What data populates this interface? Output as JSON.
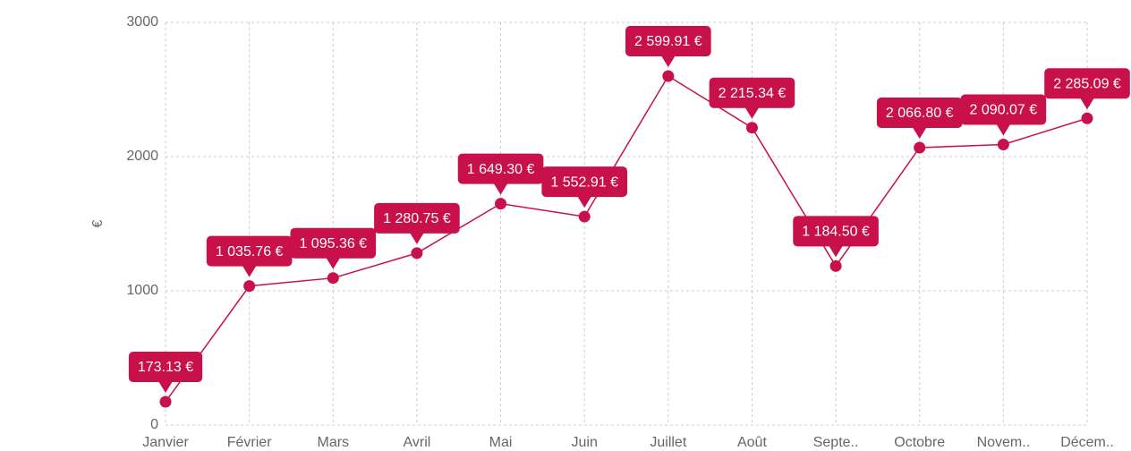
{
  "chart_data": {
    "type": "line",
    "y_label": "€",
    "categories": [
      "Janvier",
      "Février",
      "Mars",
      "Avril",
      "Mai",
      "Juin",
      "Juillet",
      "Août",
      "Septe..",
      "Octobre",
      "Novem..",
      "Décem.."
    ],
    "series": [
      {
        "name": "Total",
        "color": "#c8104a",
        "values": [
          173.13,
          1035.76,
          1095.36,
          1280.75,
          1649.3,
          1552.91,
          2599.91,
          2215.34,
          1184.5,
          2066.8,
          2090.07,
          2285.09
        ],
        "value_labels": [
          "173.13 €",
          "1 035.76 €",
          "1 095.36 €",
          "1 280.75 €",
          "1 649.30 €",
          "1 552.91 €",
          "2 599.91 €",
          "2 215.34 €",
          "1 184.50 €",
          "2 066.80 €",
          "2 090.07 €",
          "2 285.09 €"
        ]
      }
    ],
    "ylim": [
      0,
      3000
    ],
    "yticks": [
      0,
      1000,
      2000,
      3000
    ],
    "grid": true
  }
}
